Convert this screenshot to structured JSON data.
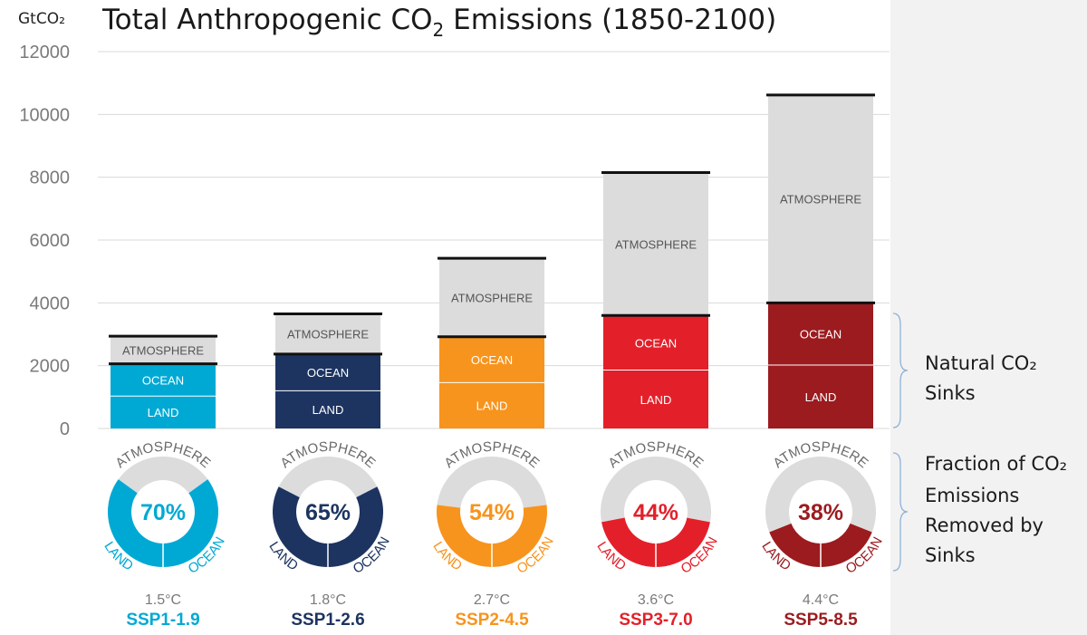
{
  "chart_data": {
    "type": "bar",
    "stacked": true,
    "title_main": "Total Anthropogenic CO",
    "title_sub": "2",
    "title_tail": " Emissions (1850-2100)",
    "ylabel": "GtCO₂",
    "ylim": [
      0,
      12000
    ],
    "yticks": [
      0,
      2000,
      4000,
      6000,
      8000,
      10000,
      12000
    ],
    "grid": true,
    "segment_labels": {
      "land": "LAND",
      "ocean": "OCEAN",
      "atmosphere": "ATMOSPHERE"
    },
    "scenarios": [
      {
        "name": "SSP1-1.9",
        "temperature": "1.5°C",
        "color": "#00a9d4",
        "land": 1030,
        "ocean": 1030,
        "atmosphere": 880,
        "total": 2940,
        "sink_fraction": 70,
        "sink_fraction_label": "70%"
      },
      {
        "name": "SSP1-2.6",
        "temperature": "1.8°C",
        "color": "#1d3461",
        "land": 1200,
        "ocean": 1170,
        "atmosphere": 1280,
        "total": 3650,
        "sink_fraction": 65,
        "sink_fraction_label": "65%"
      },
      {
        "name": "SSP2-4.5",
        "temperature": "2.7°C",
        "color": "#f7941d",
        "land": 1460,
        "ocean": 1460,
        "atmosphere": 2500,
        "total": 5420,
        "sink_fraction": 54,
        "sink_fraction_label": "54%"
      },
      {
        "name": "SSP3-7.0",
        "temperature": "3.6°C",
        "color": "#e3202a",
        "land": 1860,
        "ocean": 1740,
        "atmosphere": 4550,
        "total": 8150,
        "sink_fraction": 44,
        "sink_fraction_label": "44%"
      },
      {
        "name": "SSP5-8.5",
        "temperature": "4.4°C",
        "color": "#9b1b1f",
        "land": 2020,
        "ocean": 1980,
        "atmosphere": 6620,
        "total": 10620,
        "sink_fraction": 38,
        "sink_fraction_label": "38%"
      }
    ],
    "annotations": {
      "natural_sinks": [
        "Natural CO₂",
        "Sinks"
      ],
      "fraction_removed": [
        "Fraction of CO₂",
        "Emissions",
        "Removed by",
        "Sinks"
      ]
    }
  },
  "colors": {
    "atmosphere": "#dcdcdc",
    "bracket": "#8fb1d8",
    "grid": "#d9d9d9",
    "cap": "#111111"
  }
}
